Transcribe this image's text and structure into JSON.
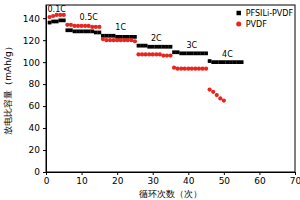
{
  "chart_data": {
    "type": "scatter",
    "x_label": "循环次数（次）",
    "y_label": "放电比容量（mAh/g）",
    "x": [
      1,
      2,
      3,
      4,
      5,
      6,
      7,
      8,
      9,
      10,
      11,
      12,
      13,
      14,
      15,
      16,
      17,
      18,
      19,
      20,
      21,
      22,
      23,
      24,
      25,
      26,
      27,
      28,
      29,
      30,
      31,
      32,
      33,
      34,
      35,
      36,
      37,
      38,
      39,
      40,
      41,
      42,
      43,
      44,
      45,
      46,
      47,
      48,
      49,
      50,
      51,
      52,
      53,
      54,
      55
    ],
    "series": [
      {
        "name": "PFSILi-PVDF",
        "color": "#000000",
        "marker": "square",
        "values": [
          136,
          137,
          137,
          138,
          138,
          129,
          129,
          128,
          128,
          128,
          128,
          128,
          128,
          127,
          127,
          124,
          124,
          124,
          124,
          123,
          123,
          123,
          123,
          123,
          123,
          115,
          115,
          115,
          114,
          114,
          114,
          114,
          114,
          114,
          114,
          109,
          109,
          108,
          108,
          108,
          108,
          108,
          108,
          108,
          108,
          101,
          100,
          100,
          100,
          100,
          100,
          100,
          100,
          100,
          100
        ]
      },
      {
        "name": "PVDF",
        "color": "#e8251e",
        "marker": "circle",
        "values": [
          141,
          142,
          143,
          143,
          143,
          134,
          134,
          133,
          133,
          133,
          133,
          133,
          132,
          132,
          132,
          121,
          120,
          120,
          120,
          120,
          120,
          120,
          120,
          120,
          119,
          107,
          107,
          107,
          107,
          107,
          107,
          107,
          106,
          106,
          106,
          95,
          94,
          94,
          94,
          94,
          94,
          94,
          94,
          94,
          94,
          75,
          73,
          70,
          67,
          65,
          null,
          null,
          null,
          null,
          null
        ]
      }
    ],
    "annotations": [
      {
        "text": "0.1C",
        "x": 3,
        "y": 146
      },
      {
        "text": "0.5C",
        "x": 12,
        "y": 138
      },
      {
        "text": "1C",
        "x": 21,
        "y": 129
      },
      {
        "text": "2C",
        "x": 31,
        "y": 119
      },
      {
        "text": "3C",
        "x": 41,
        "y": 113
      },
      {
        "text": "4C",
        "x": 51,
        "y": 105
      }
    ],
    "xlim": [
      0,
      70
    ],
    "xticks": [
      0,
      10,
      20,
      30,
      40,
      50,
      60,
      70
    ],
    "ylim": [
      0,
      152
    ],
    "yticks": [
      0,
      20,
      40,
      60,
      80,
      100,
      120,
      140
    ],
    "legend": "upper right",
    "grid": false
  }
}
